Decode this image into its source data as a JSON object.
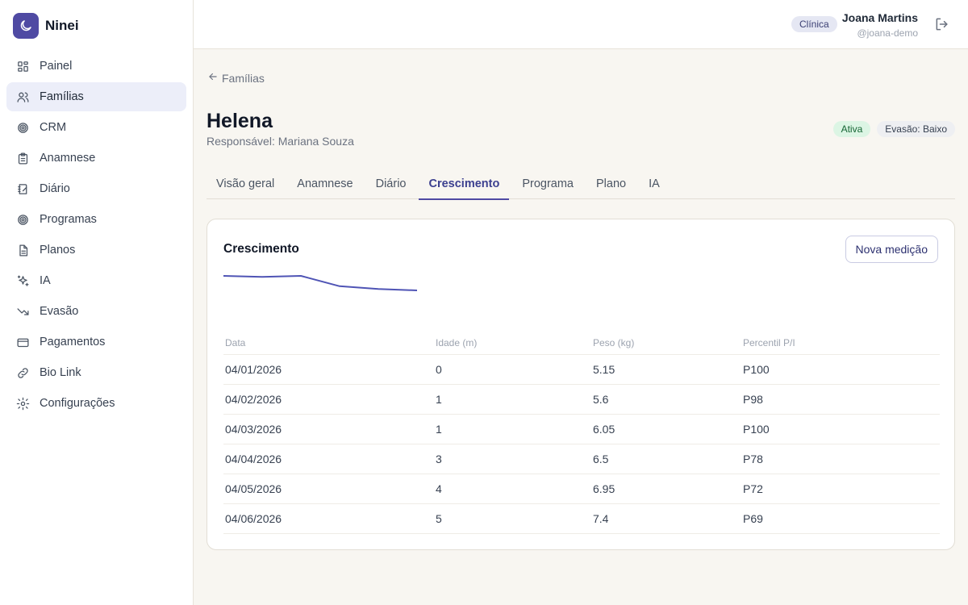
{
  "brand": {
    "name": "Ninei",
    "logo_icon": "moon-icon",
    "accent": "#4f4aa3"
  },
  "sidebar": {
    "items": [
      {
        "label": "Painel",
        "icon": "dashboard-icon"
      },
      {
        "label": "Famílias",
        "icon": "users-icon",
        "active": true
      },
      {
        "label": "CRM",
        "icon": "target-icon"
      },
      {
        "label": "Anamnese",
        "icon": "clipboard-icon"
      },
      {
        "label": "Diário",
        "icon": "notebook-icon"
      },
      {
        "label": "Programas",
        "icon": "target-icon"
      },
      {
        "label": "Planos",
        "icon": "document-icon"
      },
      {
        "label": "IA",
        "icon": "sparkles-icon"
      },
      {
        "label": "Evasão",
        "icon": "trending-down-icon"
      },
      {
        "label": "Pagamentos",
        "icon": "credit-card-icon"
      },
      {
        "label": "Bio Link",
        "icon": "link-icon"
      },
      {
        "label": "Configurações",
        "icon": "gear-icon"
      }
    ]
  },
  "header": {
    "role_badge": "Clínica",
    "user_name": "Joana Martins",
    "user_handle": "@joana-demo",
    "logout_icon": "logout-icon"
  },
  "page": {
    "back_label": "Famílias",
    "patient_name": "Helena",
    "guardian": "Responsável: Mariana Souza",
    "status_badge": "Ativa",
    "risk_badge": "Evasão: Baixo"
  },
  "tabs": [
    {
      "label": "Visão geral"
    },
    {
      "label": "Anamnese"
    },
    {
      "label": "Diário"
    },
    {
      "label": "Crescimento",
      "active": true
    },
    {
      "label": "Programa"
    },
    {
      "label": "Plano"
    },
    {
      "label": "IA"
    }
  ],
  "growth": {
    "title": "Crescimento",
    "new_button": "Nova medição",
    "columns": [
      "Data",
      "Idade (m)",
      "Peso (kg)",
      "Percentil P/I"
    ],
    "rows": [
      [
        "04/01/2026",
        "0",
        "5.15",
        "P100"
      ],
      [
        "04/02/2026",
        "1",
        "5.6",
        "P98"
      ],
      [
        "04/03/2026",
        "1",
        "6.05",
        "P100"
      ],
      [
        "04/04/2026",
        "3",
        "6.5",
        "P78"
      ],
      [
        "04/05/2026",
        "4",
        "6.95",
        "P72"
      ],
      [
        "04/06/2026",
        "5",
        "7.4",
        "P69"
      ]
    ]
  },
  "chart_data": {
    "type": "line",
    "x": [
      "04/01/2026",
      "04/02/2026",
      "04/03/2026",
      "04/04/2026",
      "04/05/2026",
      "04/06/2026"
    ],
    "series": [
      {
        "values": [
          100,
          98,
          100,
          78,
          72,
          69
        ]
      }
    ],
    "color": "#4f54b5"
  }
}
